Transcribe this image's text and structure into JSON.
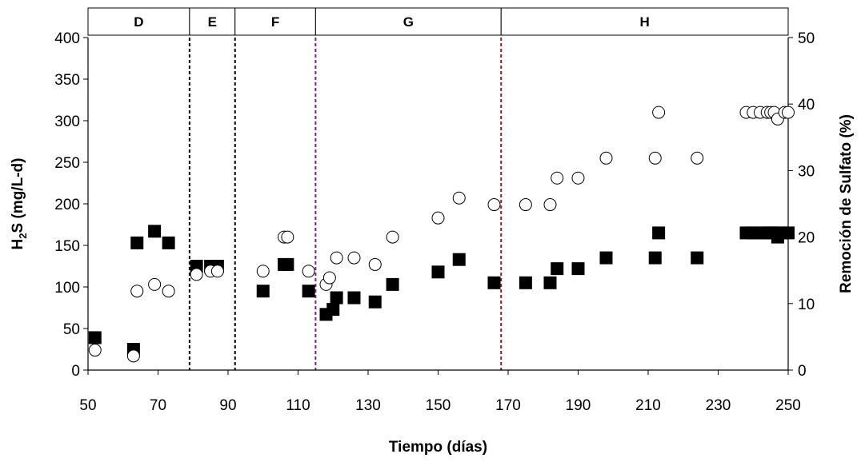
{
  "chart_data": {
    "type": "scatter",
    "xlabel": "Tiempo (días)",
    "ylabel_left": {
      "main": "H",
      "sub": "2",
      "rest": "S (mg/L-d)"
    },
    "ylabel_right": "Remoción de Sulfato (%)",
    "xlim": [
      50,
      250
    ],
    "x_ticks": [
      50,
      70,
      90,
      110,
      130,
      150,
      170,
      190,
      210,
      230,
      250
    ],
    "ylim_left": [
      0,
      400
    ],
    "y_ticks_left": [
      0,
      50,
      100,
      150,
      200,
      250,
      300,
      350,
      400
    ],
    "ylim_right": [
      0,
      50
    ],
    "y_ticks_right": [
      0,
      10,
      20,
      30,
      40,
      50
    ],
    "phases": [
      {
        "label": "D",
        "start": 50,
        "end": 79
      },
      {
        "label": "E",
        "start": 79,
        "end": 92
      },
      {
        "label": "F",
        "start": 92,
        "end": 115
      },
      {
        "label": "G",
        "start": 115,
        "end": 168
      },
      {
        "label": "H",
        "start": 168,
        "end": 250
      }
    ],
    "phase_boundaries": [
      {
        "x": 79,
        "color": "#000000"
      },
      {
        "x": 92,
        "color": "#000000"
      },
      {
        "x": 115,
        "color": "#7a1f8c"
      },
      {
        "x": 168,
        "color": "#8b1a1a"
      }
    ],
    "series": [
      {
        "axis": "left",
        "marker": "square",
        "points": [
          [
            52,
            39
          ],
          [
            63,
            25
          ],
          [
            64,
            153
          ],
          [
            69,
            167
          ],
          [
            73,
            153
          ],
          [
            81,
            125
          ],
          [
            85,
            125
          ],
          [
            87,
            125
          ],
          [
            100,
            95
          ],
          [
            106,
            127
          ],
          [
            107,
            127
          ],
          [
            113,
            95
          ],
          [
            118,
            67
          ],
          [
            120,
            73
          ],
          [
            121,
            87
          ],
          [
            126,
            87
          ],
          [
            132,
            82
          ],
          [
            137,
            103
          ],
          [
            150,
            118
          ],
          [
            156,
            133
          ],
          [
            166,
            105
          ],
          [
            175,
            105
          ],
          [
            182,
            105
          ],
          [
            184,
            122
          ],
          [
            190,
            122
          ],
          [
            198,
            135
          ],
          [
            212,
            135
          ],
          [
            213,
            165
          ],
          [
            224,
            135
          ],
          [
            238,
            165
          ],
          [
            240,
            165
          ],
          [
            242,
            165
          ],
          [
            244,
            165
          ],
          [
            245,
            165
          ],
          [
            246,
            165
          ],
          [
            247,
            160
          ],
          [
            248,
            165
          ],
          [
            250,
            165
          ]
        ]
      },
      {
        "axis": "left",
        "marker": "circle",
        "points": [
          [
            52,
            24
          ],
          [
            63,
            17
          ],
          [
            64,
            95
          ],
          [
            69,
            103
          ],
          [
            73,
            95
          ],
          [
            81,
            115
          ],
          [
            85,
            119
          ],
          [
            87,
            119
          ],
          [
            100,
            119
          ],
          [
            106,
            160
          ],
          [
            107,
            160
          ],
          [
            113,
            119
          ],
          [
            118,
            103
          ],
          [
            119,
            111
          ],
          [
            121,
            135
          ],
          [
            126,
            135
          ],
          [
            132,
            127
          ],
          [
            137,
            160
          ],
          [
            150,
            183
          ],
          [
            156,
            207
          ],
          [
            166,
            199
          ],
          [
            175,
            199
          ],
          [
            182,
            199
          ],
          [
            184,
            231
          ],
          [
            190,
            231
          ],
          [
            198,
            255
          ],
          [
            212,
            255
          ],
          [
            213,
            310
          ],
          [
            224,
            255
          ],
          [
            238,
            310
          ],
          [
            240,
            310
          ],
          [
            242,
            310
          ],
          [
            244,
            310
          ],
          [
            245,
            310
          ],
          [
            246,
            310
          ],
          [
            247,
            302
          ],
          [
            249,
            310
          ],
          [
            250,
            310
          ]
        ]
      }
    ]
  }
}
